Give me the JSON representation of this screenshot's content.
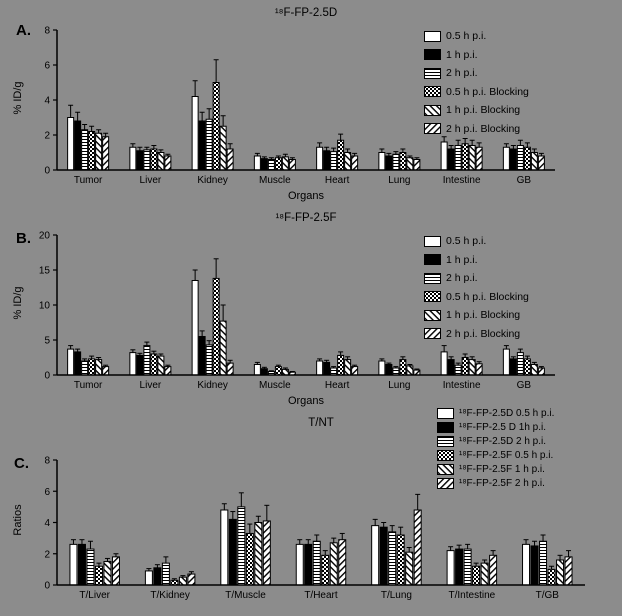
{
  "figure": {
    "background": "#8c8c8c",
    "text_color": "#000000",
    "bar_outline": "#000000"
  },
  "chart_data": [
    {
      "type": "bar",
      "panel_label": "A.",
      "title": "¹⁸F-FP-2.5D",
      "xlabel": "Organs",
      "ylabel": "% ID/g",
      "ylim": [
        0,
        8
      ],
      "yticks": [
        0,
        2,
        4,
        6,
        8
      ],
      "grid": false,
      "legend_position": "right-top",
      "categories": [
        "Tumor",
        "Liver",
        "Kidney",
        "Muscle",
        "Heart",
        "Lung",
        "Intestine",
        "GB"
      ],
      "series": [
        {
          "name": "0.5 h p.i.",
          "pattern": "white",
          "values": [
            3.0,
            1.3,
            4.2,
            0.8,
            1.3,
            1.0,
            1.6,
            1.3
          ],
          "errors": [
            0.7,
            0.2,
            0.9,
            0.15,
            0.25,
            0.2,
            0.3,
            0.2
          ]
        },
        {
          "name": "1 h p.i.",
          "pattern": "black",
          "values": [
            2.8,
            1.1,
            2.8,
            0.65,
            1.1,
            0.8,
            1.2,
            1.2
          ],
          "errors": [
            0.5,
            0.2,
            0.5,
            0.1,
            0.2,
            0.15,
            0.2,
            0.2
          ]
        },
        {
          "name": "2 h p.i.",
          "pattern": "hlines",
          "values": [
            2.3,
            1.15,
            2.9,
            0.6,
            1.05,
            0.9,
            1.4,
            1.4
          ],
          "errors": [
            0.3,
            0.15,
            0.6,
            0.1,
            0.2,
            0.15,
            0.3,
            0.3
          ]
        },
        {
          "name": "0.5 h p.i. Blocking",
          "pattern": "check",
          "values": [
            2.2,
            1.2,
            5.0,
            0.7,
            1.7,
            1.0,
            1.5,
            1.3
          ],
          "errors": [
            0.3,
            0.2,
            1.3,
            0.1,
            0.35,
            0.2,
            0.3,
            0.25
          ]
        },
        {
          "name": "1 h p.i. Blocking",
          "pattern": "diag1",
          "values": [
            2.1,
            1.0,
            2.5,
            0.75,
            1.0,
            0.7,
            1.4,
            1.0
          ],
          "errors": [
            0.2,
            0.15,
            0.6,
            0.15,
            0.2,
            0.1,
            0.3,
            0.2
          ]
        },
        {
          "name": "2 h p.i. Blocking",
          "pattern": "diag2",
          "values": [
            1.9,
            0.8,
            1.2,
            0.6,
            0.8,
            0.6,
            1.3,
            0.8
          ],
          "errors": [
            0.2,
            0.1,
            0.3,
            0.1,
            0.15,
            0.1,
            0.25,
            0.15
          ]
        }
      ]
    },
    {
      "type": "bar",
      "panel_label": "B.",
      "title": "¹⁸F-FP-2.5F",
      "xlabel": "Organs",
      "ylabel": "% ID/g",
      "ylim": [
        0,
        20
      ],
      "yticks": [
        0,
        5,
        10,
        15,
        20
      ],
      "grid": false,
      "legend_position": "right-top",
      "categories": [
        "Tumor",
        "Liver",
        "Kidney",
        "Muscle",
        "Heart",
        "Lung",
        "Intestine",
        "GB"
      ],
      "series": [
        {
          "name": "0.5 h p.i.",
          "pattern": "white",
          "values": [
            3.7,
            3.2,
            13.5,
            1.5,
            2.0,
            2.0,
            3.3,
            3.7
          ],
          "errors": [
            0.5,
            0.4,
            1.5,
            0.3,
            0.3,
            0.3,
            0.9,
            0.5
          ]
        },
        {
          "name": "1 h p.i.",
          "pattern": "black",
          "values": [
            3.3,
            2.8,
            5.5,
            0.9,
            1.8,
            1.5,
            2.2,
            2.3
          ],
          "errors": [
            0.4,
            0.3,
            0.8,
            0.2,
            0.3,
            0.2,
            0.4,
            0.3
          ]
        },
        {
          "name": "2 h p.i.",
          "pattern": "hlines",
          "values": [
            2.0,
            4.2,
            4.3,
            0.5,
            1.0,
            1.0,
            1.4,
            3.2
          ],
          "errors": [
            0.3,
            0.5,
            0.6,
            0.1,
            0.2,
            0.2,
            0.3,
            0.5
          ]
        },
        {
          "name": "0.5 h p.i. Blocking",
          "pattern": "check",
          "values": [
            2.3,
            3.0,
            13.8,
            1.2,
            2.8,
            2.2,
            2.5,
            2.3
          ],
          "errors": [
            0.4,
            0.4,
            2.8,
            0.2,
            0.5,
            0.4,
            0.5,
            0.4
          ]
        },
        {
          "name": "1 h p.i. Blocking",
          "pattern": "diag1",
          "values": [
            2.2,
            2.7,
            7.7,
            0.8,
            2.2,
            1.3,
            2.2,
            1.5
          ],
          "errors": [
            0.3,
            0.3,
            2.3,
            0.2,
            0.4,
            0.2,
            0.4,
            0.3
          ]
        },
        {
          "name": "2 h p.i. Blocking",
          "pattern": "diag2",
          "values": [
            1.2,
            1.2,
            1.7,
            0.4,
            1.2,
            0.7,
            1.6,
            1.0
          ],
          "errors": [
            0.2,
            0.2,
            0.4,
            0.1,
            0.2,
            0.15,
            0.3,
            0.2
          ]
        }
      ]
    },
    {
      "type": "bar",
      "panel_label": "C.",
      "title": "T/NT",
      "xlabel": "",
      "ylabel": "Ratios",
      "ylim": [
        0,
        8
      ],
      "yticks": [
        0,
        2,
        4,
        6,
        8
      ],
      "grid": false,
      "legend_position": "right-top",
      "categories": [
        "T/Liver",
        "T/Kidney",
        "T/Muscle",
        "T/Heart",
        "T/Lung",
        "T/Intestine",
        "T/GB"
      ],
      "series": [
        {
          "name": "¹⁸F-FP-2.5D 0.5 h p.i.",
          "pattern": "white",
          "values": [
            2.6,
            0.9,
            4.8,
            2.6,
            3.8,
            2.2,
            2.6
          ],
          "errors": [
            0.3,
            0.15,
            0.4,
            0.3,
            0.4,
            0.25,
            0.3
          ]
        },
        {
          "name": "¹⁸F-FP-2.5 D 1h p.i.",
          "pattern": "black",
          "values": [
            2.6,
            1.1,
            4.2,
            2.6,
            3.7,
            2.3,
            2.5
          ],
          "errors": [
            0.3,
            0.2,
            0.5,
            0.3,
            0.3,
            0.25,
            0.3
          ]
        },
        {
          "name": "¹⁸F-FP-2.5D 2 h p.i.",
          "pattern": "hlines",
          "values": [
            2.3,
            1.4,
            5.0,
            2.8,
            3.4,
            2.3,
            2.8
          ],
          "errors": [
            0.5,
            0.4,
            0.9,
            0.4,
            0.4,
            0.3,
            0.4
          ]
        },
        {
          "name": "¹⁸F-FP-2.5F 0.5 h p.i.",
          "pattern": "check",
          "values": [
            1.2,
            0.3,
            3.3,
            1.9,
            3.2,
            1.2,
            1.0
          ],
          "errors": [
            0.2,
            0.1,
            0.6,
            0.3,
            0.5,
            0.2,
            0.2
          ]
        },
        {
          "name": "¹⁸F-FP-2.5F 1 h p.i.",
          "pattern": "diag1",
          "values": [
            1.5,
            0.5,
            4.0,
            2.7,
            2.1,
            1.4,
            1.6
          ],
          "errors": [
            0.2,
            0.1,
            0.4,
            0.3,
            0.3,
            0.2,
            0.3
          ]
        },
        {
          "name": "¹⁸F-FP-2.5F 2 h p.i.",
          "pattern": "diag2",
          "values": [
            1.8,
            0.7,
            4.1,
            2.9,
            4.8,
            1.9,
            1.8
          ],
          "errors": [
            0.2,
            0.15,
            1.0,
            0.4,
            1.0,
            0.3,
            0.4
          ]
        }
      ]
    }
  ]
}
